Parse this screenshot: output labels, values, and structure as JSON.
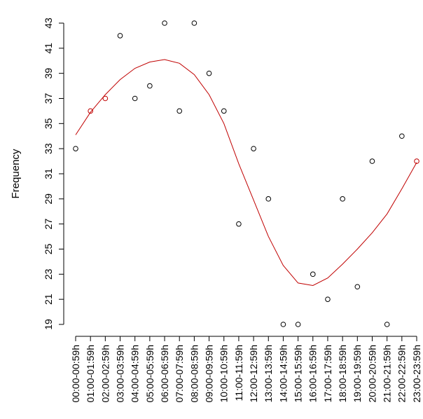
{
  "chart_data": {
    "type": "scatter",
    "title": "",
    "xlabel": "",
    "ylabel": "Frequency",
    "ylim": [
      18.5,
      43.8
    ],
    "y_ticks": [
      19,
      21,
      23,
      25,
      27,
      29,
      31,
      33,
      35,
      37,
      39,
      41,
      43
    ],
    "grid": false,
    "categories": [
      "00:00-00:59h",
      "01:00-01:59h",
      "02:00-02:59h",
      "03:00-03:59h",
      "04:00-04:59h",
      "05:00-05:59h",
      "06:00-06:59h",
      "07:00-07:59h",
      "08:00-08:59h",
      "09:00-09:59h",
      "10:00-10:59h",
      "11:00-11:59h",
      "12:00-12:59h",
      "13:00-13:59h",
      "14:00-14:59h",
      "15:00-15:59h",
      "16:00-16:59h",
      "17:00-17:59h",
      "18:00-18:59h",
      "19:00-19:59h",
      "20:00-20:59h",
      "21:00-21:59h",
      "22:00-22:59h",
      "23:00-23:59h"
    ],
    "series": [
      {
        "values": [
          33,
          36,
          37,
          42,
          37,
          38,
          43,
          36,
          43,
          39,
          36,
          27,
          33,
          29,
          19,
          19,
          23,
          21,
          29,
          22,
          32,
          19,
          34,
          32
        ],
        "point_colors": [
          "#000000",
          "#c00000",
          "#c00000",
          "#000000",
          "#000000",
          "#000000",
          "#000000",
          "#000000",
          "#000000",
          "#000000",
          "#000000",
          "#000000",
          "#000000",
          "#000000",
          "#000000",
          "#000000",
          "#000000",
          "#000000",
          "#000000",
          "#000000",
          "#000000",
          "#000000",
          "#000000",
          "#c00000"
        ]
      },
      {
        "type": "line",
        "color": "#c00000",
        "values": [
          34.1,
          35.9,
          37.3,
          38.5,
          39.4,
          39.9,
          40.1,
          39.8,
          38.9,
          37.3,
          35.0,
          31.8,
          28.9,
          26.0,
          23.7,
          22.3,
          22.1,
          22.7,
          23.8,
          25.0,
          26.3,
          27.8,
          29.8,
          31.9
        ]
      }
    ]
  }
}
